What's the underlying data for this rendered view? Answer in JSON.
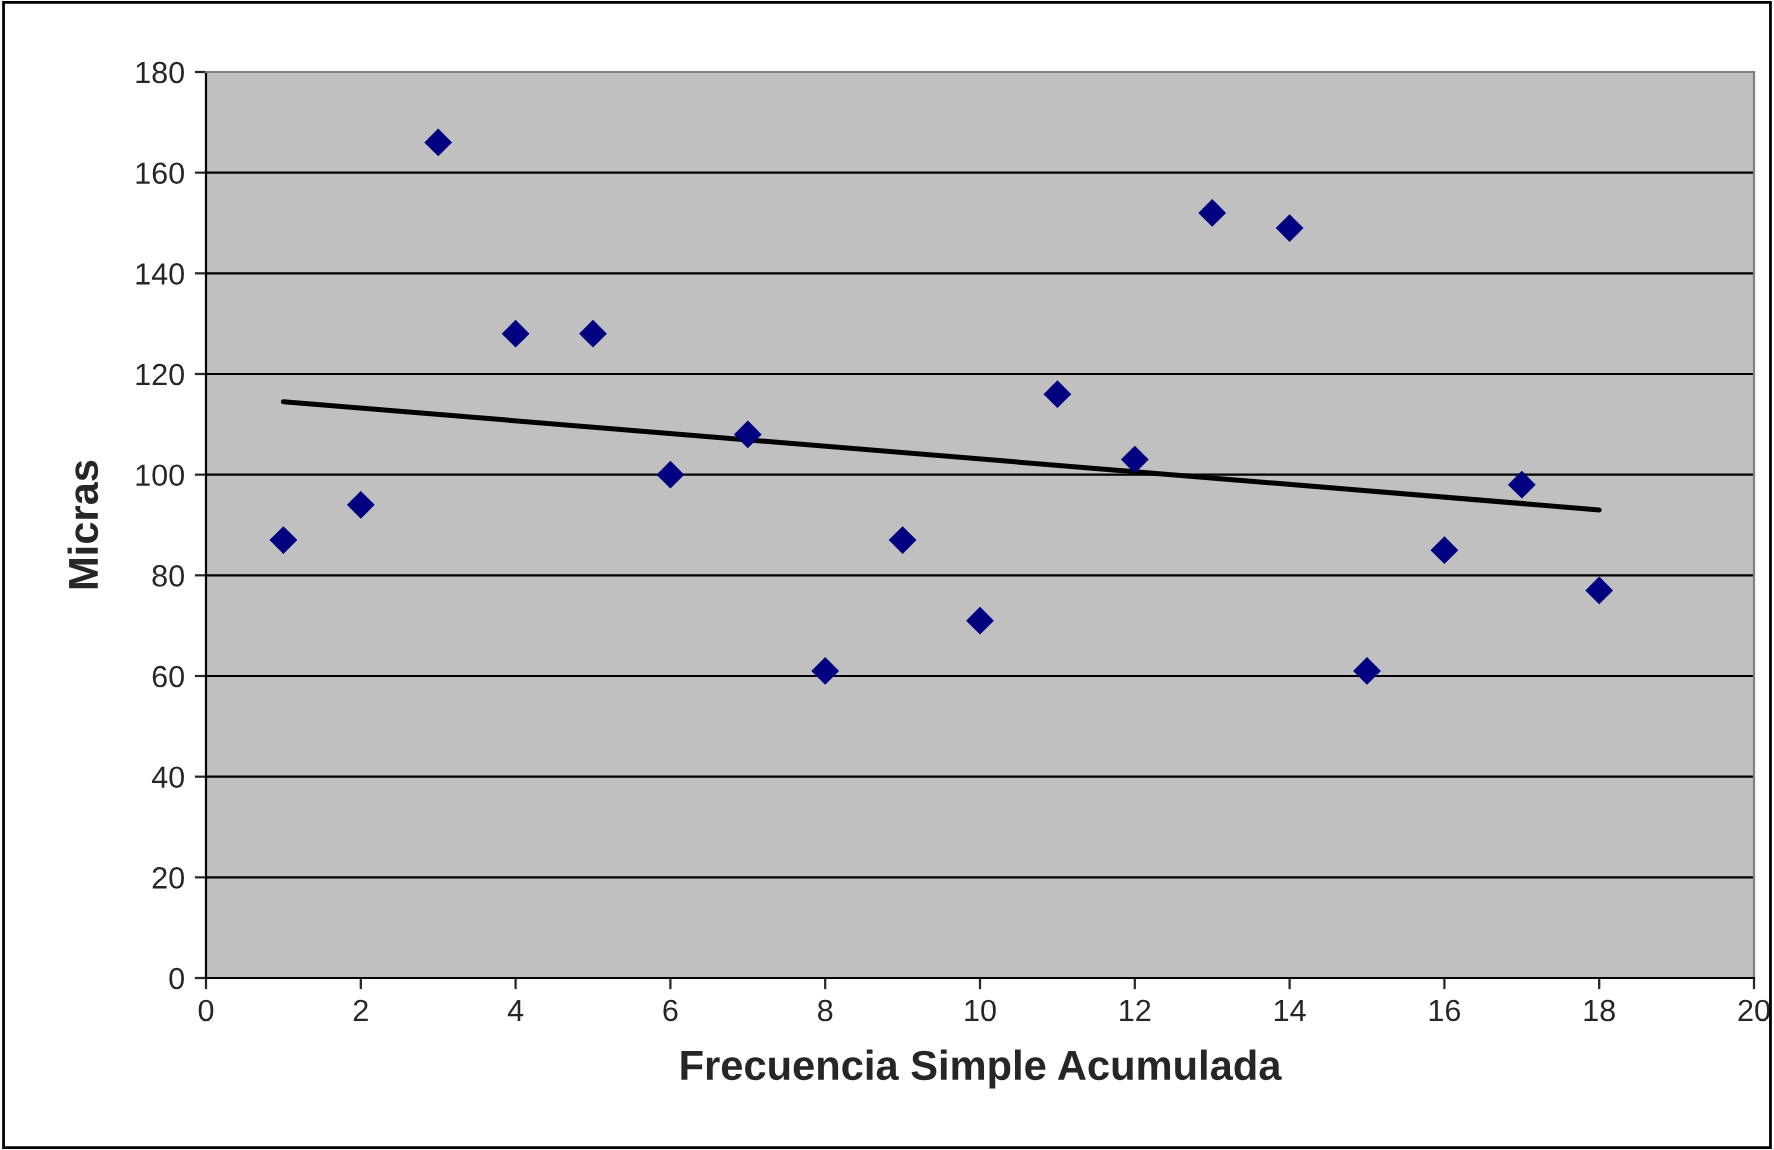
{
  "chart_data": {
    "type": "scatter",
    "xlabel": "Frecuencia Simple Acumulada",
    "ylabel": "Micras",
    "xlim": [
      0,
      20
    ],
    "xticks": [
      0,
      2,
      4,
      6,
      8,
      10,
      12,
      14,
      16,
      18,
      20
    ],
    "ylim": [
      0,
      180
    ],
    "yticks": [
      0,
      20,
      40,
      60,
      80,
      100,
      120,
      140,
      160,
      180
    ],
    "grid": "y",
    "legend": false,
    "marker": "diamond",
    "series": [
      {
        "color": "#000080",
        "x": [
          1,
          2,
          3,
          4,
          5,
          6,
          7,
          8,
          9,
          10,
          11,
          12,
          13,
          14,
          15,
          16,
          17,
          18
        ],
        "values": [
          87,
          94,
          166,
          128,
          128,
          100,
          108,
          61,
          87,
          71,
          116,
          103,
          152,
          149,
          61,
          85,
          98,
          77
        ]
      },
      {
        "type": "line",
        "color": "#000000",
        "x": [
          1,
          18
        ],
        "values": [
          114.5,
          93
        ],
        "marker": "none",
        "line_style": "solid"
      }
    ]
  }
}
